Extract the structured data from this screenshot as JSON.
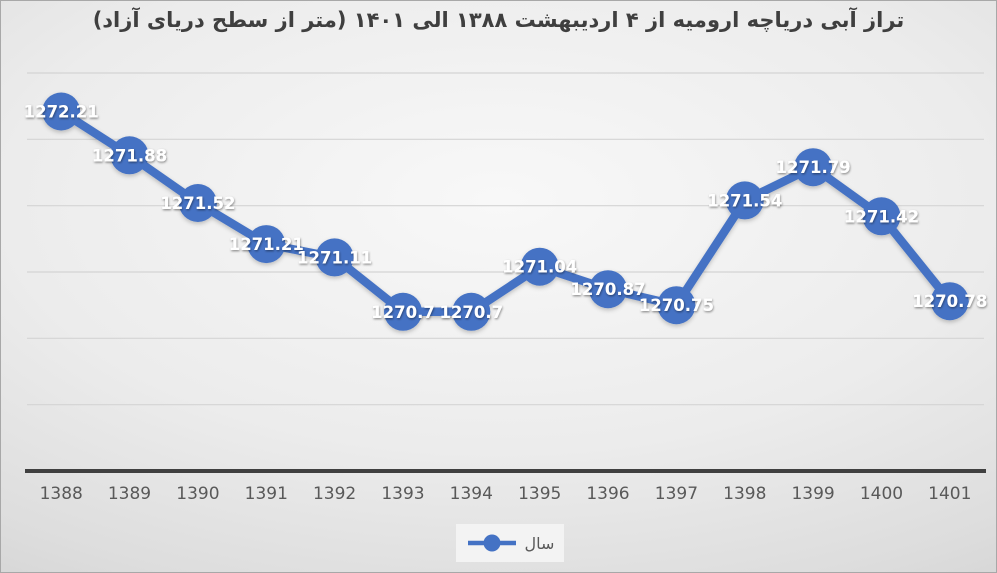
{
  "chart_title": "تراز آبی دریاچه ارومیه از ۴ اردیبهشت ۱۳۸۸ الی ۱۴۰۱ (متر از سطح دریای آزاد)",
  "legend": {
    "series_label": "سال"
  },
  "colors": {
    "series": "#4472C4",
    "data_label": "#ffffff",
    "gridline": "#d4d4d4",
    "axis_line": "#404040",
    "tick_label": "#595959",
    "title": "#3f3f3f",
    "legend_text": "#595959",
    "legend_background": "#f3f3f3"
  },
  "chart_data": {
    "type": "line",
    "title": "تراز آبی دریاچه ارومیه از ۴ اردیبهشت ۱۳۸۸ الی ۱۴۰۱ (متر از سطح دریای آزاد)",
    "categories": [
      "1388",
      "1389",
      "1390",
      "1391",
      "1392",
      "1393",
      "1394",
      "1395",
      "1396",
      "1397",
      "1398",
      "1399",
      "1400",
      "1401"
    ],
    "series": [
      {
        "name": "سال",
        "values": [
          1272.21,
          1271.88,
          1271.52,
          1271.21,
          1271.11,
          1270.7,
          1270.7,
          1271.04,
          1270.87,
          1270.75,
          1271.54,
          1271.79,
          1271.42,
          1270.78
        ]
      }
    ],
    "xlabel": "",
    "ylabel": "",
    "ylim": [
      1269.5,
      1272.5
    ],
    "gridline_step": 0.5,
    "grid": true,
    "legend_position": "bottom",
    "data_label_position": "center",
    "y_axis_labels_visible": false,
    "x_axis_labels_visible": true
  }
}
